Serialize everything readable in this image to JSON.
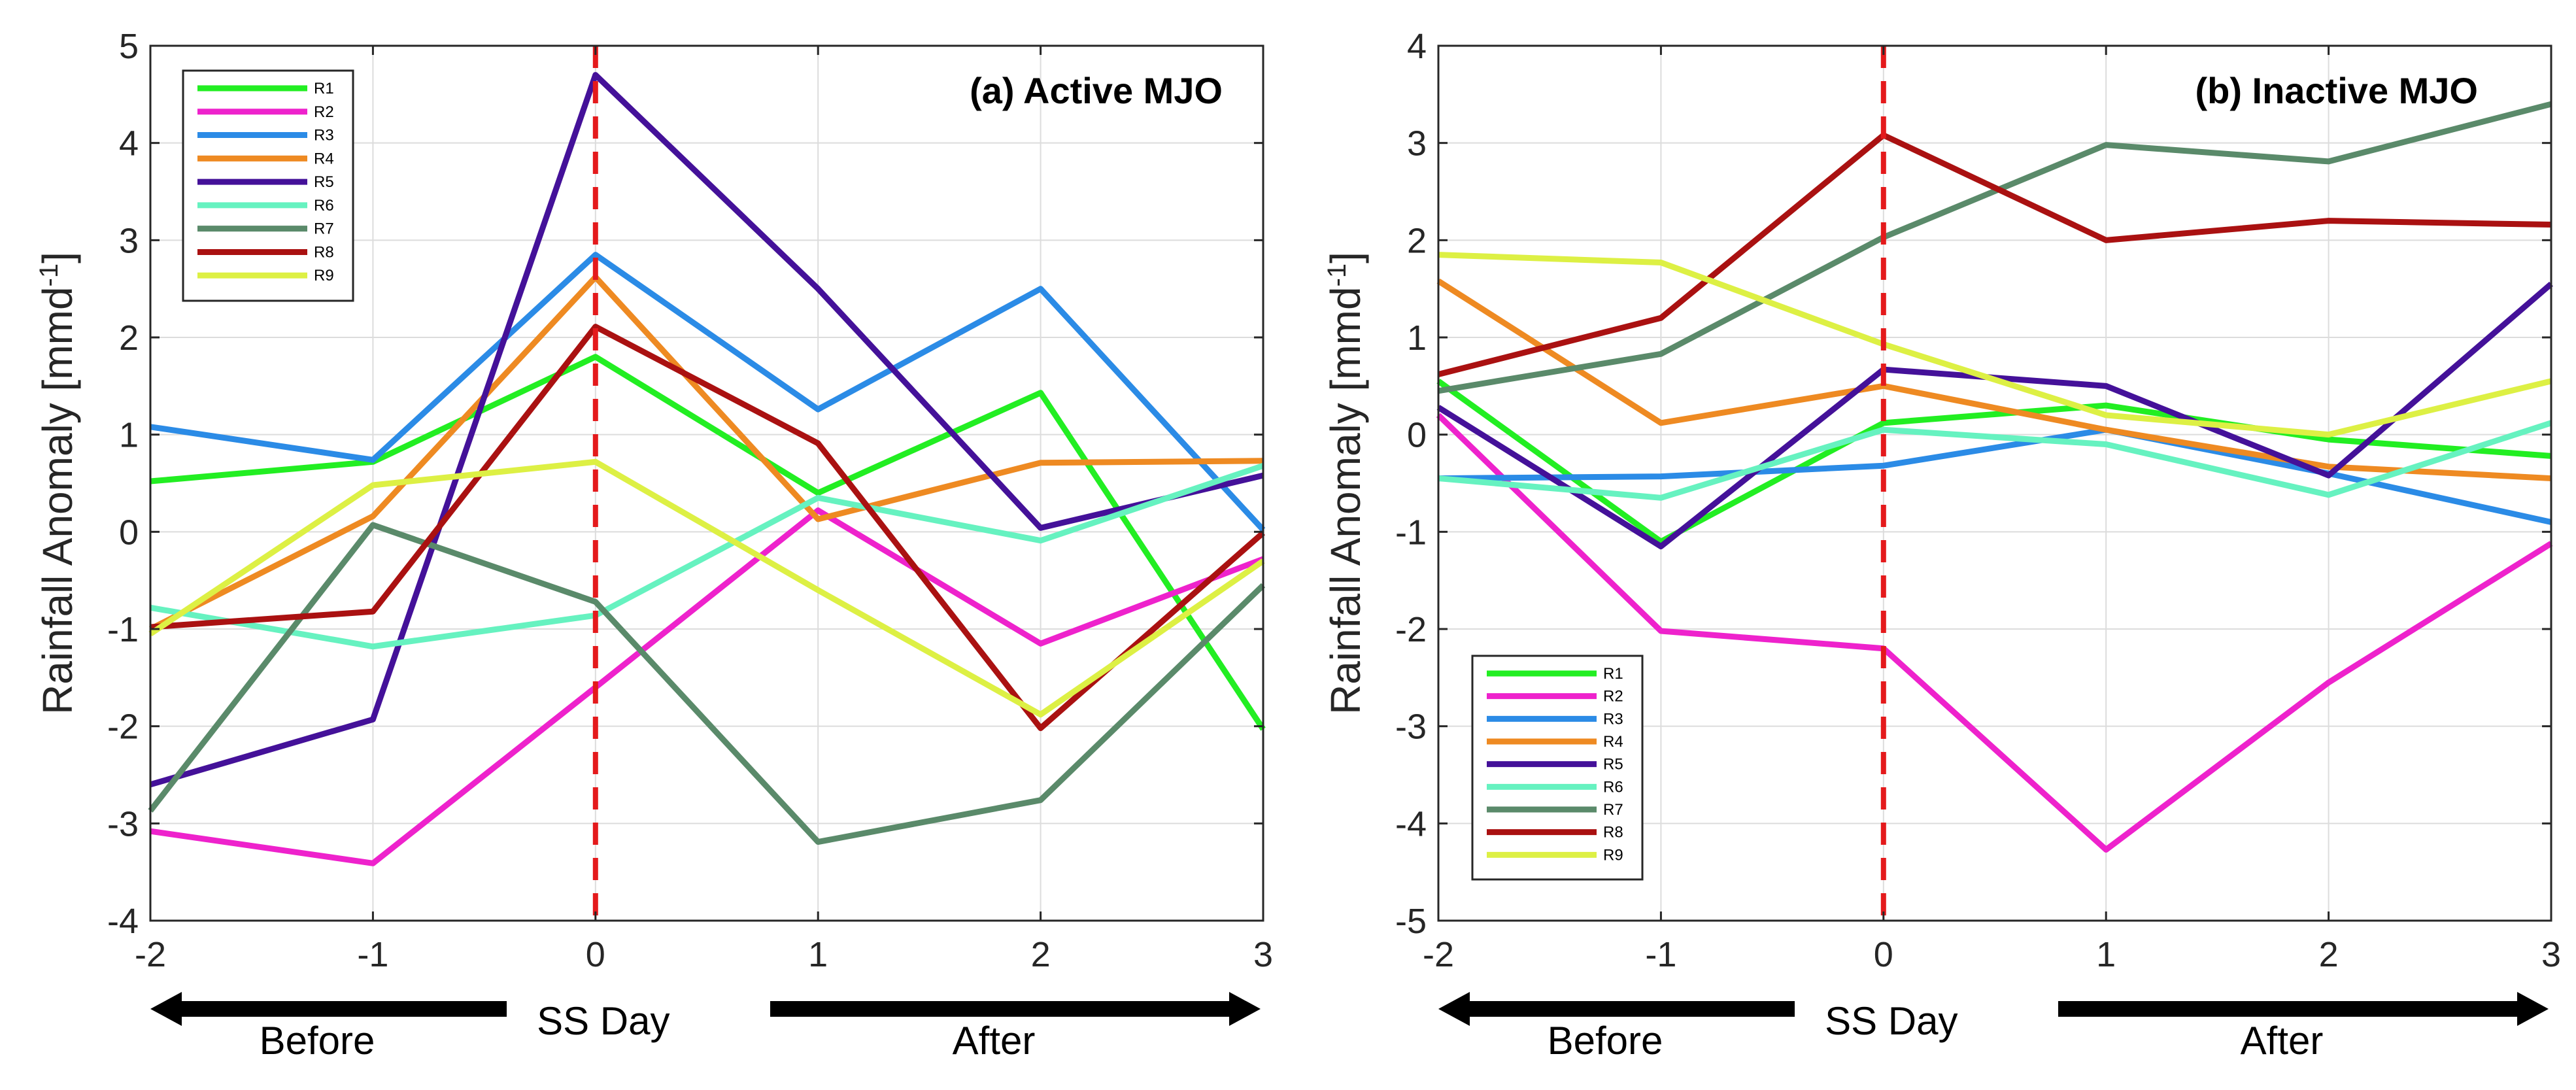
{
  "chart_data": [
    {
      "type": "line",
      "title": "(a) Active MJO",
      "ylabel": "Rainfall Anomaly [mmd",
      "ylabel_sup": "-1",
      "ylabel_end": "]",
      "x": [
        -2,
        -1,
        0,
        1,
        2,
        3
      ],
      "xtick_labels": [
        "-2",
        "-1",
        "0",
        "1",
        "2",
        "3"
      ],
      "xlim": [
        -2,
        3
      ],
      "ylim": [
        -4,
        5
      ],
      "yticks": [
        -4,
        -3,
        -2,
        -1,
        0,
        1,
        2,
        3,
        4,
        5
      ],
      "ytick_labels": [
        "-4",
        "-3",
        "-2",
        "-1",
        "0",
        "1",
        "2",
        "3",
        "4",
        "5"
      ],
      "grid": true,
      "legend_position": "top-left",
      "event_line": {
        "x": 0,
        "color": "#e41a1c",
        "style": "dashed"
      },
      "series": [
        {
          "name": "R1",
          "color": "#22ee22",
          "values": [
            0.52,
            0.72,
            1.8,
            0.4,
            1.43,
            -2.03
          ]
        },
        {
          "name": "R2",
          "color": "#ee22cc",
          "values": [
            -3.08,
            -3.41,
            -1.6,
            0.22,
            -1.15,
            -0.28
          ]
        },
        {
          "name": "R3",
          "color": "#2b8be6",
          "values": [
            1.08,
            0.74,
            2.85,
            1.26,
            2.5,
            0.02
          ]
        },
        {
          "name": "R4",
          "color": "#ee8a22",
          "values": [
            -1.0,
            0.16,
            2.62,
            0.13,
            0.71,
            0.73
          ]
        },
        {
          "name": "R5",
          "color": "#441199",
          "values": [
            -2.6,
            -1.93,
            4.7,
            2.5,
            0.04,
            0.58
          ]
        },
        {
          "name": "R6",
          "color": "#66f2c0",
          "values": [
            -0.78,
            -1.18,
            -0.86,
            0.35,
            -0.09,
            0.68
          ]
        },
        {
          "name": "R7",
          "color": "#5a8a6a",
          "values": [
            -2.87,
            0.07,
            -0.72,
            -3.19,
            -2.76,
            -0.55
          ]
        },
        {
          "name": "R8",
          "color": "#aa1111",
          "values": [
            -0.98,
            -0.82,
            2.11,
            0.91,
            -2.02,
            -0.01
          ]
        },
        {
          "name": "R9",
          "color": "#ddf044",
          "values": [
            -1.05,
            0.48,
            0.72,
            -0.6,
            -1.88,
            -0.3
          ]
        }
      ]
    },
    {
      "type": "line",
      "title": "(b) Inactive MJO",
      "ylabel": "Rainfall Anomaly [mmd",
      "ylabel_sup": "-1",
      "ylabel_end": "]",
      "x": [
        -2,
        -1,
        0,
        1,
        2,
        3
      ],
      "xtick_labels": [
        "-2",
        "-1",
        "0",
        "1",
        "2",
        "3"
      ],
      "xlim": [
        -2,
        3
      ],
      "ylim": [
        -5,
        4
      ],
      "yticks": [
        -5,
        -4,
        -3,
        -2,
        -1,
        0,
        1,
        2,
        3,
        4
      ],
      "ytick_labels": [
        "-5",
        "-4",
        "-3",
        "-2",
        "-1",
        "0",
        "1",
        "2",
        "3",
        "4"
      ],
      "grid": true,
      "legend_position": "bottom-left",
      "event_line": {
        "x": 0,
        "color": "#e41a1c",
        "style": "dashed"
      },
      "series": [
        {
          "name": "R1",
          "color": "#22ee22",
          "values": [
            0.55,
            -1.1,
            0.12,
            0.3,
            -0.05,
            -0.22
          ]
        },
        {
          "name": "R2",
          "color": "#ee22cc",
          "values": [
            0.2,
            -2.02,
            -2.2,
            -4.27,
            -2.55,
            -1.12
          ]
        },
        {
          "name": "R3",
          "color": "#2b8be6",
          "values": [
            -0.45,
            -0.43,
            -0.32,
            0.05,
            -0.4,
            -0.9
          ]
        },
        {
          "name": "R4",
          "color": "#ee8a22",
          "values": [
            1.58,
            0.12,
            0.5,
            0.05,
            -0.33,
            -0.45
          ]
        },
        {
          "name": "R5",
          "color": "#441199",
          "values": [
            0.28,
            -1.15,
            0.67,
            0.5,
            -0.42,
            1.55
          ]
        },
        {
          "name": "R6",
          "color": "#66f2c0",
          "values": [
            -0.45,
            -0.65,
            0.05,
            -0.1,
            -0.62,
            0.12
          ]
        },
        {
          "name": "R7",
          "color": "#5a8a6a",
          "values": [
            0.45,
            0.83,
            2.03,
            2.98,
            2.81,
            3.4
          ]
        },
        {
          "name": "R8",
          "color": "#aa1111",
          "values": [
            0.62,
            1.2,
            3.08,
            2.0,
            2.2,
            2.16
          ]
        },
        {
          "name": "R9",
          "color": "#ddf044",
          "values": [
            1.85,
            1.77,
            0.93,
            0.2,
            0.0,
            0.55
          ]
        }
      ]
    }
  ],
  "annotations": {
    "before_label": "Before",
    "ss_day_label": "SS Day",
    "after_label": "After"
  },
  "colors": {
    "axis": "#262626",
    "grid": "#dcdcdc",
    "arrow": "#000000",
    "background": "#ffffff"
  }
}
